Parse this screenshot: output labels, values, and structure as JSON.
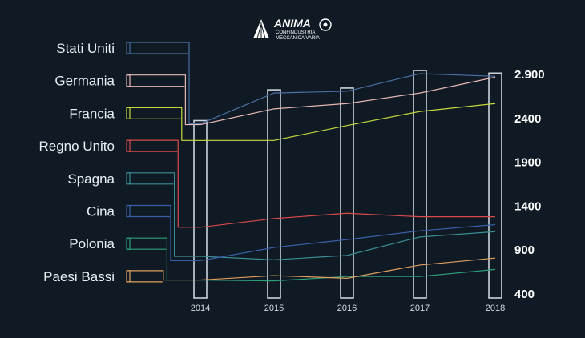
{
  "logo": {
    "brand": "ANIMA",
    "line1": "CONFINDUSTRIA",
    "line2": "MECCANICA VARIA"
  },
  "colors": {
    "background": "#0f1a24",
    "axis_box": "#c9d4dc"
  },
  "chart_data": {
    "type": "line",
    "title": "",
    "xlabel": "",
    "ylabel": "",
    "x": [
      "2014",
      "2015",
      "2016",
      "2017",
      "2018"
    ],
    "ylim": [
      400,
      2900
    ],
    "yticks": [
      400,
      900,
      1400,
      1900,
      2400,
      2900
    ],
    "ytick_labels": [
      "400",
      "900",
      "1400",
      "1900",
      "2400",
      "2.900"
    ],
    "grid": false,
    "legend": "left",
    "series": [
      {
        "name": "Stati Uniti",
        "color": "#4a6fa0",
        "values": [
          2330,
          2680,
          2700,
          2900,
          2870
        ]
      },
      {
        "name": "Germania",
        "color": "#e7b8b4",
        "values": [
          2320,
          2500,
          2560,
          2680,
          2860
        ]
      },
      {
        "name": "Francia",
        "color": "#c7d93d",
        "values": [
          2140,
          2140,
          2310,
          2470,
          2560
        ]
      },
      {
        "name": "Regno Unito",
        "color": "#d94a4a",
        "values": [
          1150,
          1250,
          1310,
          1270,
          1270
        ]
      },
      {
        "name": "Spagna",
        "color": "#3a8c93",
        "values": [
          820,
          780,
          830,
          1040,
          1100
        ]
      },
      {
        "name": "Cina",
        "color": "#3a5fa8",
        "values": [
          770,
          920,
          1010,
          1110,
          1180
        ]
      },
      {
        "name": "Polonia",
        "color": "#2f9e7a",
        "values": [
          550,
          540,
          590,
          590,
          670
        ]
      },
      {
        "name": "Paesi Bassi",
        "color": "#e0a060",
        "values": [
          550,
          600,
          570,
          720,
          800
        ]
      }
    ]
  }
}
